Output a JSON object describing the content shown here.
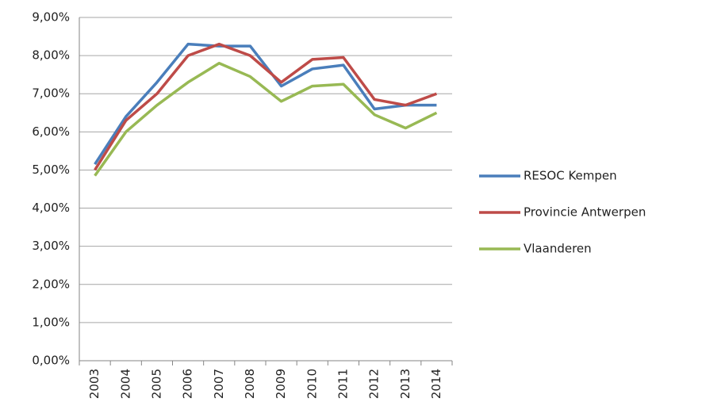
{
  "chart_data": {
    "type": "line",
    "categories": [
      "2003",
      "2004",
      "2005",
      "2006",
      "2007",
      "2008",
      "2009",
      "2010",
      "2011",
      "2012",
      "2013",
      "2014"
    ],
    "series": [
      {
        "name": "RESOC Kempen",
        "color": "#4a7ebb",
        "values": [
          5.15,
          6.4,
          7.3,
          8.3,
          8.25,
          8.25,
          7.2,
          7.65,
          7.75,
          6.6,
          6.7,
          6.7
        ]
      },
      {
        "name": "Provincie Antwerpen",
        "color": "#be4b48",
        "values": [
          5.0,
          6.3,
          7.0,
          8.0,
          8.3,
          8.0,
          7.3,
          7.9,
          7.95,
          6.85,
          6.7,
          7.0
        ]
      },
      {
        "name": "Vlaanderen",
        "color": "#98b954",
        "values": [
          4.85,
          6.0,
          6.7,
          7.3,
          7.8,
          7.45,
          6.8,
          7.2,
          7.25,
          6.45,
          6.1,
          6.5
        ]
      }
    ],
    "ylim": [
      0,
      9
    ],
    "yticks": [
      {
        "value": 0,
        "label": "0,00%"
      },
      {
        "value": 1,
        "label": "1,00%"
      },
      {
        "value": 2,
        "label": "2,00%"
      },
      {
        "value": 3,
        "label": "3,00%"
      },
      {
        "value": 4,
        "label": "4,00%"
      },
      {
        "value": 5,
        "label": "5,00%"
      },
      {
        "value": 6,
        "label": "6,00%"
      },
      {
        "value": 7,
        "label": "7,00%"
      },
      {
        "value": 8,
        "label": "8,00%"
      },
      {
        "value": 9,
        "label": "9,00%"
      }
    ],
    "grid": true,
    "legend": "right"
  }
}
